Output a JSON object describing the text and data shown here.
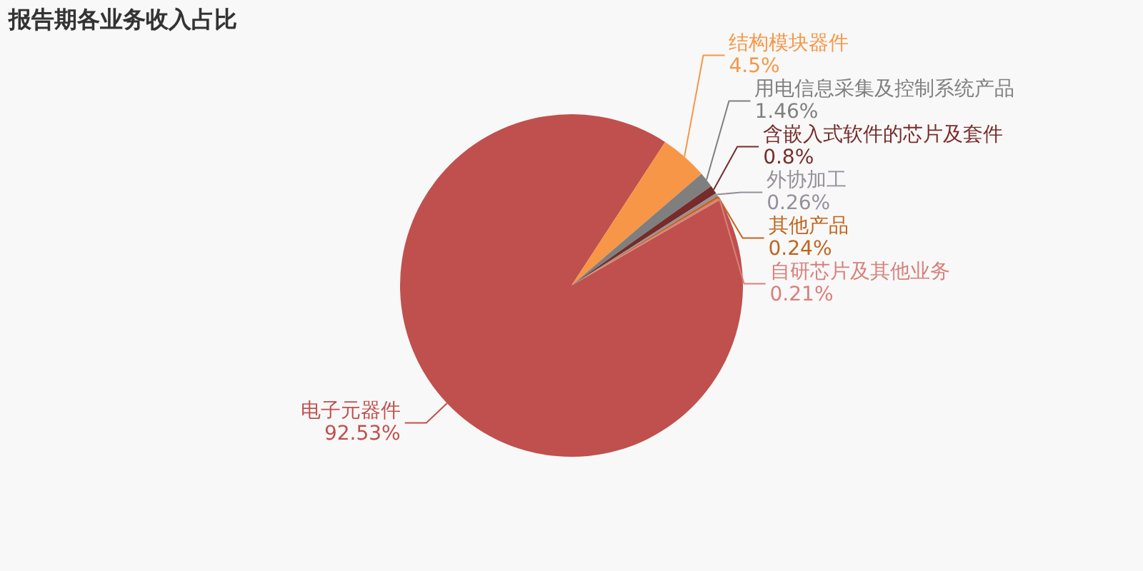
{
  "chart_data": {
    "type": "pie",
    "title": "报告期各业务收入占比",
    "categories": [
      "电子元器件",
      "结构模块器件",
      "用电信息采集及控制系统产品",
      "含嵌入式软件的芯片及套件",
      "外协加工",
      "其他产品",
      "自研芯片及其他业务"
    ],
    "values": [
      92.53,
      4.5,
      1.46,
      0.8,
      0.26,
      0.24,
      0.21
    ],
    "colors": [
      "#c0504d",
      "#f79646",
      "#7f7f7f",
      "#772c2a",
      "#958f9b",
      "#c0651e",
      "#d8807a"
    ],
    "value_labels": [
      "92.53%",
      "4.5%",
      "1.46%",
      "0.8%",
      "0.26%",
      "0.24%",
      "0.21%"
    ],
    "legend": false
  }
}
